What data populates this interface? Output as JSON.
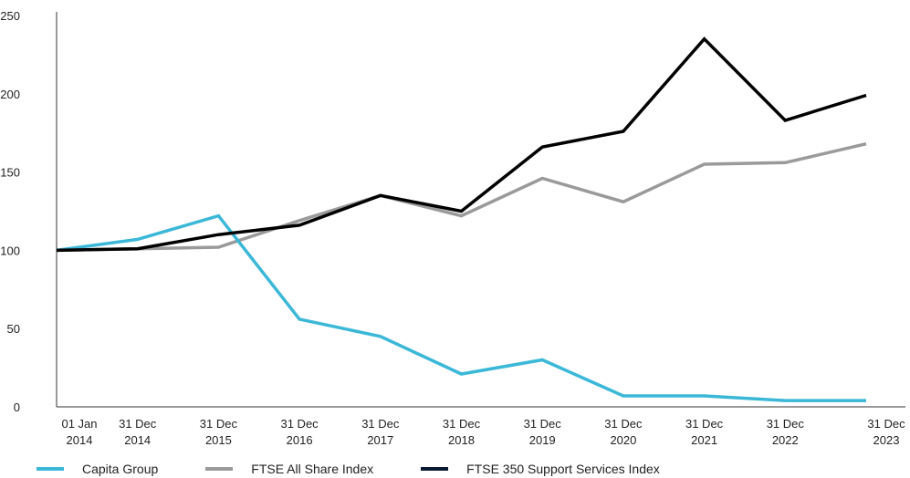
{
  "chart_data": {
    "type": "line",
    "categories": [
      [
        "01 Jan",
        "2014"
      ],
      [
        "31 Dec",
        "2014"
      ],
      [
        "31 Dec",
        "2015"
      ],
      [
        "31 Dec",
        "2016"
      ],
      [
        "31 Dec",
        "2017"
      ],
      [
        "31 Dec",
        "2018"
      ],
      [
        "31 Dec",
        "2019"
      ],
      [
        "31 Dec",
        "2020"
      ],
      [
        "31 Dec",
        "2021"
      ],
      [
        "31 Dec",
        "2022"
      ],
      [
        "31 Dec",
        "2023"
      ]
    ],
    "ylim": [
      0,
      250
    ],
    "yticks": [
      "0",
      "50",
      "100",
      "150",
      "200",
      "250"
    ],
    "grid": false,
    "legend_position": "bottom-left",
    "series": [
      {
        "name": "Capita Group",
        "color": "#3bb8d8",
        "values": [
          100,
          107,
          122,
          56,
          45,
          21,
          30,
          7,
          7,
          4,
          4
        ]
      },
      {
        "name": "FTSE All Share Index",
        "color": "#9a9a9a",
        "values": [
          100,
          101,
          102,
          119,
          135,
          122,
          146,
          131,
          155,
          156,
          168
        ]
      },
      {
        "name": "FTSE 350 Support Services Index",
        "color": "#000000",
        "values": [
          100,
          101,
          110,
          116,
          135,
          125,
          166,
          176,
          235,
          183,
          199
        ]
      }
    ]
  }
}
